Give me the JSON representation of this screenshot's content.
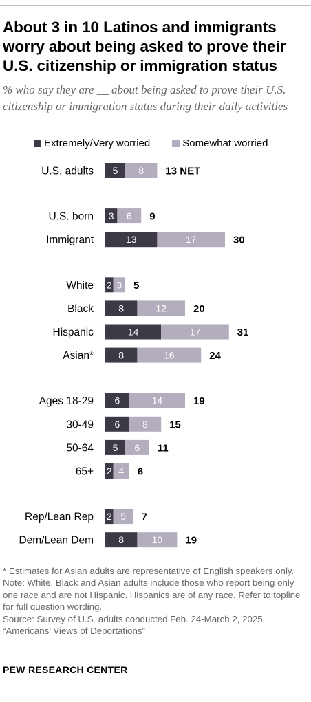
{
  "title": "About 3 in 10 Latinos and immigrants worry about being asked to prove their U.S. citizenship or immigration status",
  "subtitle": "% who say they are __ about being asked to prove their U.S. citizenship or immigration status during their daily activities",
  "legend": {
    "extremely": "Extremely/Very worried",
    "somewhat": "Somewhat worried"
  },
  "colors": {
    "extremely": "#3d3a46",
    "somewhat": "#b3adbd",
    "bar_label_light": "#ffffff",
    "text": "#000000",
    "notes": "#666666"
  },
  "chart_data": {
    "type": "bar",
    "orientation": "horizontal",
    "stacked": true,
    "categories": [
      "U.S. adults",
      "U.S. born",
      "Immigrant",
      "White",
      "Black",
      "Hispanic",
      "Asian*",
      "Ages 18-29",
      "30-49",
      "50-64",
      "65+",
      "Rep/Lean Rep",
      "Dem/Lean Dem"
    ],
    "groups": [
      [
        0
      ],
      [
        1,
        2
      ],
      [
        3,
        4,
        5,
        6
      ],
      [
        7,
        8,
        9,
        10
      ],
      [
        11,
        12
      ]
    ],
    "series": [
      {
        "name": "Extremely/Very worried",
        "values": [
          5,
          3,
          13,
          2,
          8,
          14,
          8,
          6,
          6,
          5,
          2,
          2,
          8
        ]
      },
      {
        "name": "Somewhat worried",
        "values": [
          8,
          6,
          17,
          3,
          12,
          17,
          16,
          14,
          8,
          6,
          4,
          5,
          10
        ]
      }
    ],
    "totals": [
      "13 NET",
      "9",
      "30",
      "5",
      "20",
      "31",
      "24",
      "19",
      "15",
      "11",
      "6",
      "7",
      "19"
    ]
  },
  "notes": [
    "* Estimates for Asian adults are representative of English speakers only.",
    "Note: White, Black and Asian adults include those who report being only one race and are not Hispanic. Hispanics are of any race. Refer to topline for full question wording.",
    "Source: Survey of U.S. adults conducted Feb. 24-March 2, 2025.",
    "“Americans’ Views of Deportations”"
  ],
  "brand": "PEW RESEARCH CENTER"
}
